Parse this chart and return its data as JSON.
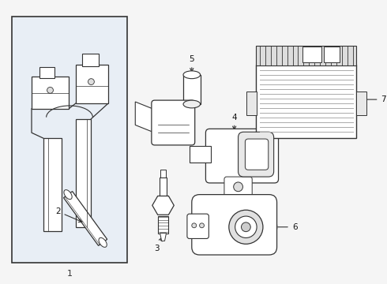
{
  "background_color": "#f5f5f5",
  "part_box_color": "#e8eef5",
  "line_color": "#333333",
  "label_color": "#111111",
  "fig_width": 4.9,
  "fig_height": 3.6,
  "dpi": 100
}
